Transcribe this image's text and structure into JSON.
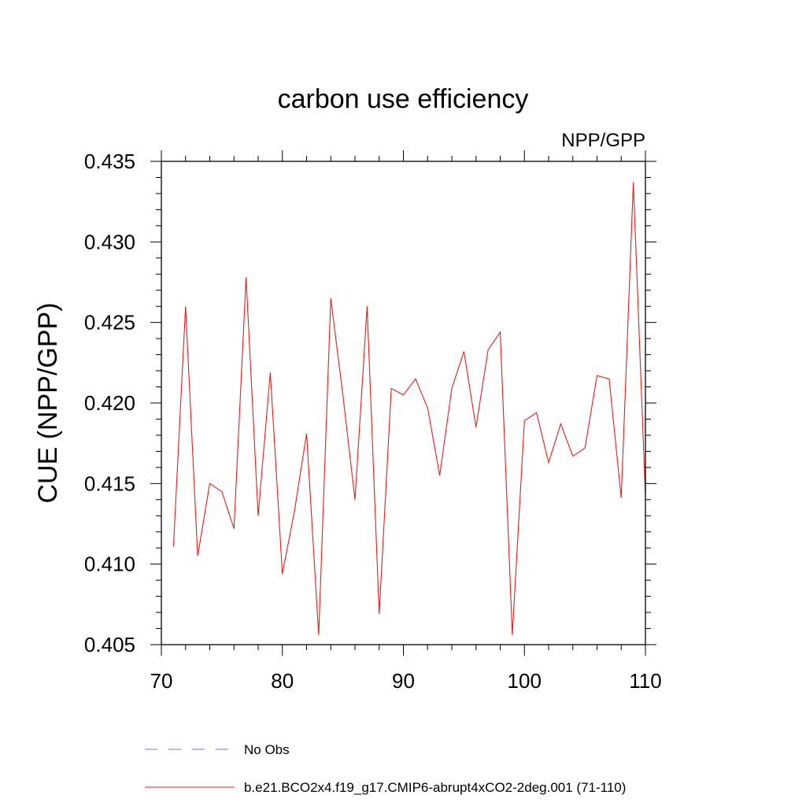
{
  "chart_data": {
    "type": "line",
    "title": "carbon use efficiency",
    "subtitle": "NPP/GPP",
    "xlabel": "",
    "ylabel": "CUE  (NPP/GPP)",
    "xlim": [
      70,
      110
    ],
    "ylim": [
      0.405,
      0.435
    ],
    "xticks": [
      70,
      80,
      90,
      100,
      110
    ],
    "xtick_labels": [
      "70",
      "80",
      "90",
      "100",
      "110"
    ],
    "yticks": [
      0.405,
      0.41,
      0.415,
      0.42,
      0.425,
      0.43,
      0.435
    ],
    "ytick_labels": [
      "0.405",
      "0.410",
      "0.415",
      "0.420",
      "0.425",
      "0.430",
      "0.435"
    ],
    "grid": false,
    "legend_position": "bottom",
    "series": [
      {
        "name": "b.e21.BCO2x4.f19_g17.CMIP6-abrupt4xCO2-2deg.001 (71-110)",
        "color": "#e0201c",
        "dash": "solid",
        "x": [
          71,
          72,
          73,
          74,
          75,
          76,
          77,
          78,
          79,
          80,
          81,
          82,
          83,
          84,
          85,
          86,
          87,
          88,
          89,
          90,
          91,
          92,
          93,
          94,
          95,
          96,
          97,
          98,
          99,
          100,
          101,
          102,
          103,
          104,
          105,
          106,
          107,
          108,
          109,
          110
        ],
        "y": [
          0.4111,
          0.426,
          0.4105,
          0.415,
          0.4145,
          0.4122,
          0.4278,
          0.413,
          0.4219,
          0.4094,
          0.4133,
          0.4181,
          0.4056,
          0.4265,
          0.4205,
          0.414,
          0.426,
          0.4069,
          0.4209,
          0.4205,
          0.4215,
          0.4197,
          0.4155,
          0.4209,
          0.4232,
          0.4185,
          0.4233,
          0.4244,
          0.4056,
          0.4189,
          0.4194,
          0.4163,
          0.4187,
          0.4167,
          0.4172,
          0.4217,
          0.4215,
          0.4141,
          0.4337,
          0.4142
        ]
      }
    ],
    "legend": [
      {
        "label": "No Obs",
        "color": "#7a7ab8",
        "dash": "dashed"
      },
      {
        "label": "b.e21.BCO2x4.f19_g17.CMIP6-abrupt4xCO2-2deg.001 (71-110)",
        "color": "#e0201c",
        "dash": "solid"
      }
    ]
  }
}
